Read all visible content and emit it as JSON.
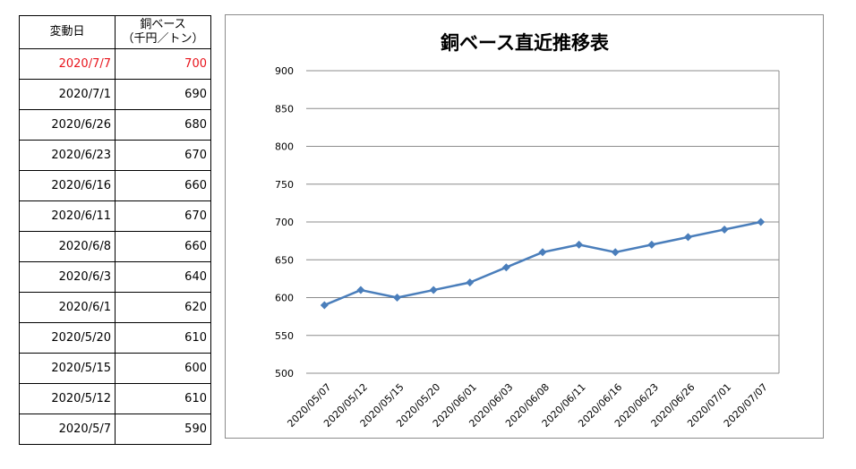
{
  "table": {
    "header_date": "変動日",
    "header_price_line1": "銅ベース",
    "header_price_line2": "（千円／トン）",
    "rows": [
      {
        "date": "2020/7/7",
        "price": "700"
      },
      {
        "date": "2020/7/1",
        "price": "690"
      },
      {
        "date": "2020/6/26",
        "price": "680"
      },
      {
        "date": "2020/6/23",
        "price": "670"
      },
      {
        "date": "2020/6/16",
        "price": "660"
      },
      {
        "date": "2020/6/11",
        "price": "670"
      },
      {
        "date": "2020/6/8",
        "price": "660"
      },
      {
        "date": "2020/6/3",
        "price": "640"
      },
      {
        "date": "2020/6/1",
        "price": "620"
      },
      {
        "date": "2020/5/20",
        "price": "610"
      },
      {
        "date": "2020/5/15",
        "price": "600"
      },
      {
        "date": "2020/5/12",
        "price": "610"
      },
      {
        "date": "2020/5/7",
        "price": "590"
      }
    ],
    "latest_color": "#e8141c"
  },
  "chart_data": {
    "type": "line",
    "title": "銅ベース直近推移表",
    "xlabel": "",
    "ylabel": "",
    "categories": [
      "2020/05/07",
      "2020/05/12",
      "2020/05/15",
      "2020/05/20",
      "2020/06/01",
      "2020/06/03",
      "2020/06/08",
      "2020/06/11",
      "2020/06/16",
      "2020/06/23",
      "2020/06/26",
      "2020/07/01",
      "2020/07/07"
    ],
    "series": [
      {
        "values": [
          590,
          610,
          600,
          610,
          620,
          640,
          660,
          670,
          660,
          670,
          680,
          690,
          700
        ]
      }
    ],
    "ylim": [
      500,
      900
    ],
    "yticks": [
      500,
      550,
      600,
      650,
      700,
      750,
      800,
      850,
      900
    ],
    "grid": true,
    "legend": "none",
    "line_color": "#4a7ebb"
  }
}
